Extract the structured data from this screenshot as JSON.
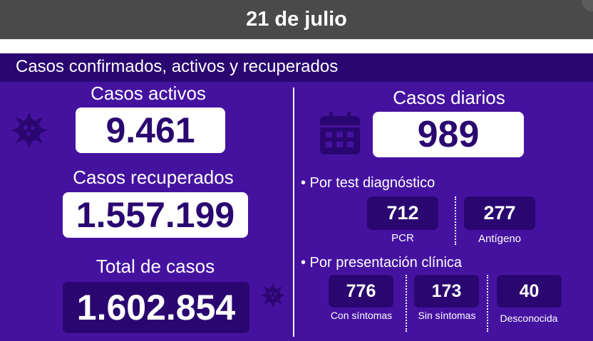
{
  "header": {
    "date": "21 de julio"
  },
  "section": {
    "title": "Casos confirmados, activos y recuperados"
  },
  "left": {
    "activos": {
      "label": "Casos activos",
      "value": "9.461"
    },
    "recuperados": {
      "label": "Casos recuperados",
      "value": "1.557.199"
    },
    "total": {
      "label": "Total de casos",
      "value": "1.602.854"
    }
  },
  "right": {
    "diarios": {
      "label": "Casos diarios",
      "value": "989"
    },
    "por_test": {
      "heading": "• Por test diagnóstico",
      "items": [
        {
          "value": "712",
          "label": "PCR"
        },
        {
          "value": "277",
          "label": "Antígeno"
        }
      ]
    },
    "por_presentacion": {
      "heading": "• Por presentación clínica",
      "items": [
        {
          "value": "776",
          "label": "Con síntomas"
        },
        {
          "value": "173",
          "label": "Sin síntomas"
        },
        {
          "value": "40",
          "label": "Desconocida"
        }
      ]
    }
  },
  "colors": {
    "panel": "#4512a0",
    "dark": "#2a0770",
    "header_bar": "#4a4a4a"
  },
  "icons": [
    "virus-icon",
    "calendar-icon"
  ]
}
